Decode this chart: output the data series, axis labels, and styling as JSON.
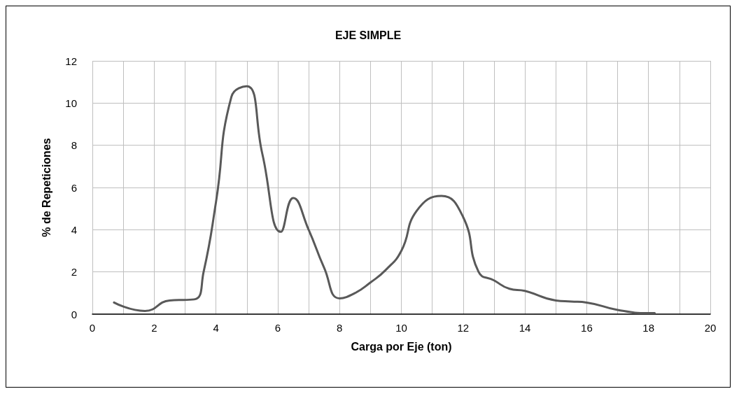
{
  "chart_data": {
    "type": "line",
    "title": "EJE SIMPLE",
    "xlabel": "Carga por Eje (ton)",
    "ylabel": "% de Repeticiones",
    "x": [
      0.7,
      1.7,
      2.5,
      3.3,
      3.6,
      4,
      4.5,
      5,
      5.5,
      6.1,
      6.5,
      7,
      7.5,
      8,
      8.5,
      9,
      9.5,
      10,
      10.5,
      11.3,
      12,
      12.5,
      13,
      13.5,
      14,
      15,
      15.5,
      16,
      17,
      18,
      18.2
    ],
    "series": [
      {
        "color": "#595959",
        "values": [
          0.55,
          0.15,
          0.65,
          0.7,
          2,
          5.3,
          10.3,
          10.8,
          7.6,
          3.9,
          5.5,
          4,
          2.2,
          0.75,
          1,
          1.5,
          2.1,
          3,
          4.9,
          5.6,
          4.6,
          2,
          1.6,
          1.2,
          1.1,
          0.65,
          0.6,
          0.55,
          0.2,
          0.05,
          0.05
        ]
      }
    ],
    "xlim": [
      0,
      20
    ],
    "ylim": [
      0,
      12
    ],
    "xticks": [
      0,
      {
        "value": 1,
        "label": null
      },
      2,
      {
        "value": 3,
        "label": null
      },
      4,
      {
        "value": 5,
        "label": null
      },
      6,
      {
        "value": 7,
        "label": null
      },
      8,
      {
        "value": 9,
        "label": null
      },
      10,
      {
        "value": 11,
        "label": null
      },
      12,
      {
        "value": 13,
        "label": null
      },
      14,
      {
        "value": 15,
        "label": null
      },
      16,
      {
        "value": 17,
        "label": null
      },
      18,
      {
        "value": 19,
        "label": null
      },
      20
    ],
    "yticks": [
      0,
      2,
      4,
      6,
      8,
      10,
      12
    ],
    "grid": true,
    "marker": "none",
    "line_style": "solid"
  }
}
